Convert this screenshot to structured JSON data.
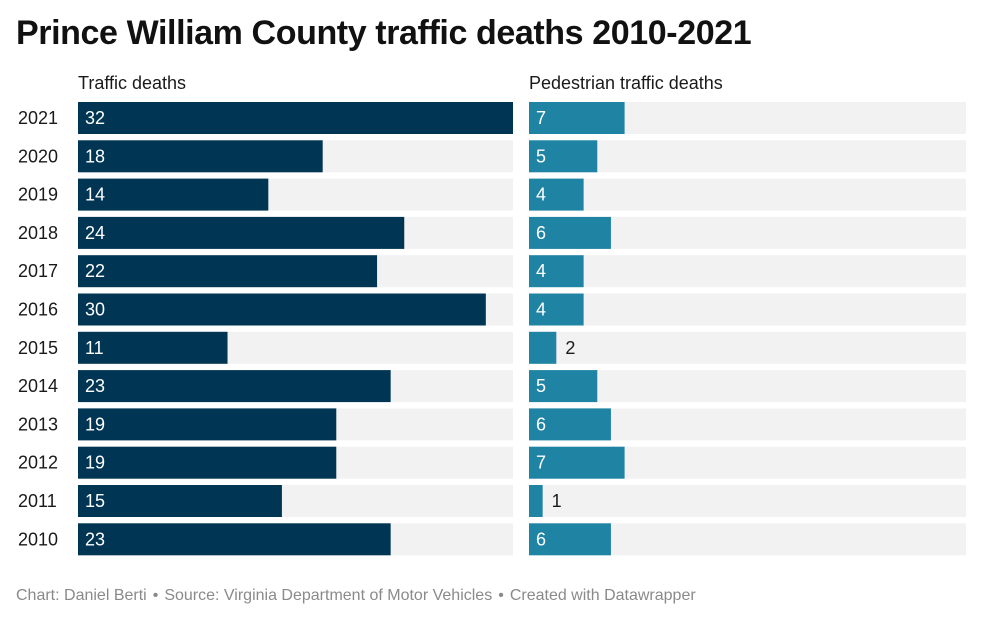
{
  "title": "Prince William County traffic deaths 2010-2021",
  "footer": {
    "chart_by": "Chart: Daniel Berti",
    "source": "Source: Virginia Department of Motor Vehicles",
    "created_with": "Created with Datawrapper"
  },
  "colors": {
    "traffic": "#003554",
    "pedestrian": "#1f83a3",
    "track": "#f2f2f2",
    "label_inside": "#ffffff",
    "label_outside": "#1a1a1a"
  },
  "chart_data": {
    "type": "bar",
    "orientation": "horizontal",
    "title": "Prince William County traffic deaths 2010-2021",
    "categories": [
      "2021",
      "2020",
      "2019",
      "2018",
      "2017",
      "2016",
      "2015",
      "2014",
      "2013",
      "2012",
      "2011",
      "2010"
    ],
    "series": [
      {
        "name": "Traffic deaths",
        "values": [
          32,
          18,
          14,
          24,
          22,
          30,
          11,
          23,
          19,
          19,
          15,
          23
        ],
        "xlim": [
          0,
          32
        ]
      },
      {
        "name": "Pedestrian traffic deaths",
        "values": [
          7,
          5,
          4,
          6,
          4,
          4,
          2,
          5,
          6,
          7,
          1,
          6
        ],
        "xlim": [
          0,
          32
        ]
      }
    ],
    "data_labels": true,
    "grid": false,
    "legend": "none"
  }
}
